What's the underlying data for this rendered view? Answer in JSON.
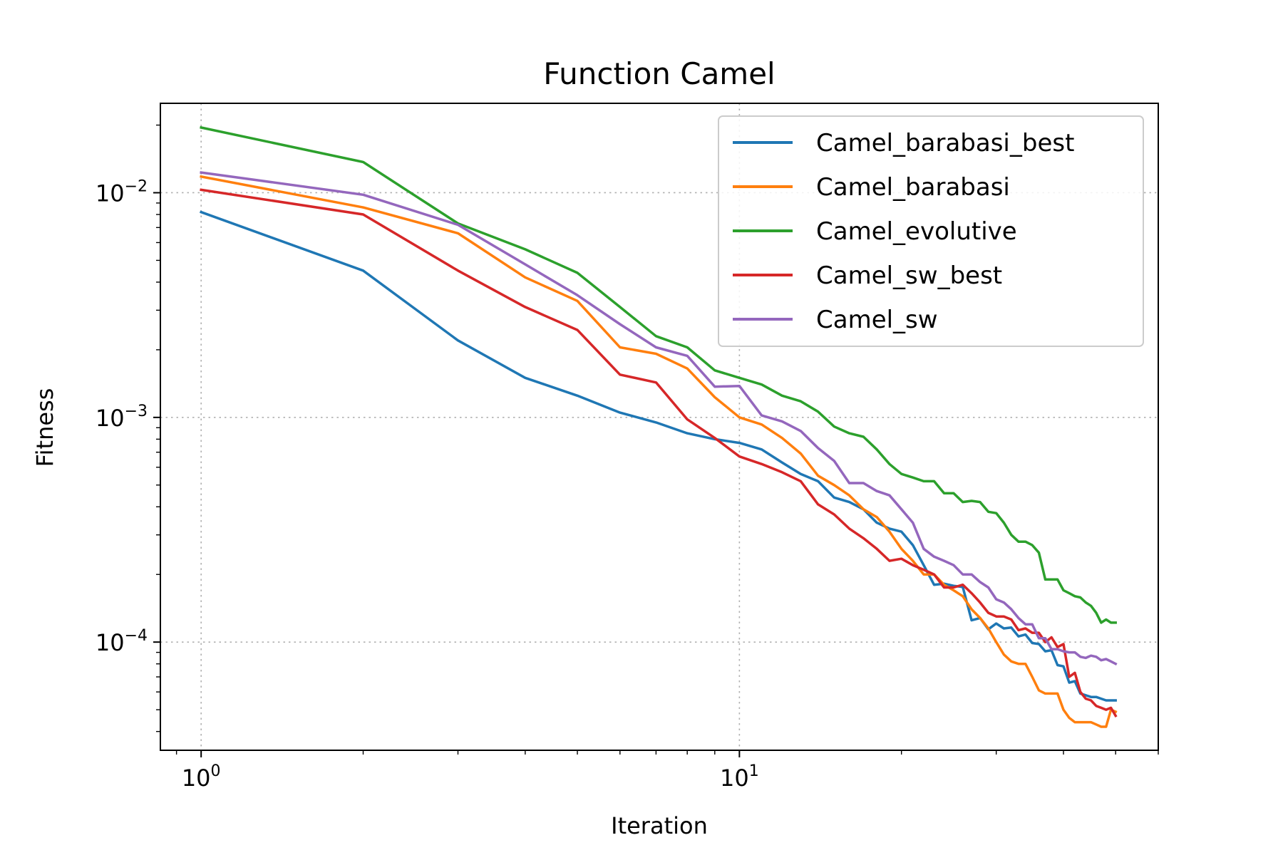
{
  "chart_data": {
    "type": "line",
    "title": "Function Camel",
    "xlabel": "Iteration",
    "ylabel": "Fitness",
    "xscale": "log",
    "yscale": "log",
    "xlim": [
      0.84,
      60
    ],
    "ylim": [
      3.3e-05,
      0.025
    ],
    "grid": true,
    "legend_position": "top-right",
    "x_ticks": [
      {
        "value": 1,
        "base": "10",
        "exp": "0"
      },
      {
        "value": 10,
        "base": "10",
        "exp": "1"
      }
    ],
    "y_ticks": [
      {
        "value": 0.01,
        "base": "10",
        "exp": "−2"
      },
      {
        "value": 0.001,
        "base": "10",
        "exp": "−3"
      },
      {
        "value": 0.0001,
        "base": "10",
        "exp": "−4"
      }
    ],
    "series": [
      {
        "name": "Camel_barabasi_best",
        "color": "#1f77b4",
        "x": [
          1,
          2,
          3,
          4,
          5,
          6,
          7,
          8,
          9,
          10,
          11,
          12,
          13,
          14,
          15,
          16,
          17,
          18,
          19,
          20,
          21,
          22,
          23,
          24,
          25,
          26,
          27,
          28,
          29,
          30,
          31,
          32,
          33,
          34,
          35,
          36,
          37,
          38,
          39,
          40,
          41,
          42,
          43,
          44,
          45,
          46,
          47,
          48,
          49,
          50
        ],
        "y": [
          0.0082,
          0.0045,
          0.0022,
          0.0015,
          0.00125,
          0.00105,
          0.00095,
          0.00085,
          0.0008,
          0.00077,
          0.00072,
          0.00063,
          0.00056,
          0.00052,
          0.00044,
          0.00042,
          0.00039,
          0.00034,
          0.00032,
          0.00031,
          0.00027,
          0.00022,
          0.00018,
          0.000182,
          0.000178,
          0.000176,
          0.000125,
          0.000128,
          0.000114,
          0.000121,
          0.000115,
          0.000116,
          0.000106,
          0.000108,
          9.9e-05,
          9.8e-05,
          9.1e-05,
          9.2e-05,
          7.9e-05,
          7.8e-05,
          6.6e-05,
          6.7e-05,
          5.9e-05,
          5.8e-05,
          5.7e-05,
          5.7e-05,
          5.6e-05,
          5.5e-05,
          5.5e-05,
          5.5e-05
        ]
      },
      {
        "name": "Camel_barabasi",
        "color": "#ff7f0e",
        "x": [
          1,
          2,
          3,
          4,
          5,
          6,
          7,
          8,
          9,
          10,
          11,
          12,
          13,
          14,
          15,
          16,
          17,
          18,
          19,
          20,
          21,
          22,
          23,
          24,
          25,
          26,
          27,
          28,
          29,
          30,
          31,
          32,
          33,
          34,
          35,
          36,
          37,
          38,
          39,
          40,
          41,
          42,
          43,
          44,
          45,
          46,
          47,
          48,
          49,
          50
        ],
        "y": [
          0.0118,
          0.0086,
          0.0066,
          0.0042,
          0.0033,
          0.00205,
          0.00192,
          0.00165,
          0.00123,
          0.001,
          0.00093,
          0.00081,
          0.00069,
          0.00055,
          0.0005,
          0.00045,
          0.00039,
          0.00036,
          0.00031,
          0.00026,
          0.00023,
          0.0002,
          0.0002,
          0.00018,
          0.00017,
          0.00016,
          0.00014,
          0.000128,
          0.000115,
          0.0001,
          8.8e-05,
          8.2e-05,
          8e-05,
          8e-05,
          7e-05,
          6.1e-05,
          5.9e-05,
          5.9e-05,
          5.9e-05,
          5e-05,
          4.6e-05,
          4.4e-05,
          4.4e-05,
          4.4e-05,
          4.4e-05,
          4.3e-05,
          4.2e-05,
          4.2e-05,
          5e-05,
          4.9e-05
        ]
      },
      {
        "name": "Camel_evolutive",
        "color": "#2ca02c",
        "x": [
          1,
          2,
          3,
          4,
          5,
          6,
          7,
          8,
          9,
          10,
          11,
          12,
          13,
          14,
          15,
          16,
          17,
          18,
          19,
          20,
          21,
          22,
          23,
          24,
          25,
          26,
          27,
          28,
          29,
          30,
          31,
          32,
          33,
          34,
          35,
          36,
          37,
          38,
          39,
          40,
          41,
          42,
          43,
          44,
          45,
          46,
          47,
          48,
          49,
          50
        ],
        "y": [
          0.0195,
          0.0137,
          0.0073,
          0.0056,
          0.0044,
          0.0031,
          0.0023,
          0.00205,
          0.00162,
          0.0015,
          0.0014,
          0.00125,
          0.00118,
          0.00106,
          0.00091,
          0.00085,
          0.00082,
          0.00072,
          0.00062,
          0.00056,
          0.00054,
          0.00052,
          0.00052,
          0.00046,
          0.00046,
          0.00042,
          0.000425,
          0.00042,
          0.00038,
          0.000375,
          0.00034,
          0.0003,
          0.00028,
          0.00028,
          0.00027,
          0.00025,
          0.00019,
          0.00019,
          0.00019,
          0.00017,
          0.000165,
          0.00016,
          0.000158,
          0.00015,
          0.000145,
          0.000135,
          0.000122,
          0.000126,
          0.000122,
          0.000122
        ]
      },
      {
        "name": "Camel_sw_best",
        "color": "#d62728",
        "x": [
          1,
          2,
          3,
          4,
          5,
          6,
          7,
          8,
          9,
          10,
          11,
          12,
          13,
          14,
          15,
          16,
          17,
          18,
          19,
          20,
          21,
          22,
          23,
          24,
          25,
          26,
          27,
          28,
          29,
          30,
          31,
          32,
          33,
          34,
          35,
          36,
          37,
          38,
          39,
          40,
          41,
          42,
          43,
          44,
          45,
          46,
          47,
          48,
          49,
          50
        ],
        "y": [
          0.0103,
          0.008,
          0.0045,
          0.0031,
          0.00245,
          0.00155,
          0.00143,
          0.00098,
          0.00081,
          0.00067,
          0.00062,
          0.00057,
          0.00052,
          0.00041,
          0.00037,
          0.00032,
          0.00029,
          0.00026,
          0.00023,
          0.000235,
          0.00022,
          0.00021,
          0.0002,
          0.000175,
          0.000175,
          0.00018,
          0.000165,
          0.00015,
          0.000135,
          0.00013,
          0.00013,
          0.000126,
          0.000113,
          0.000115,
          0.00011,
          0.00011,
          0.0001,
          0.000105,
          9.5e-05,
          9.8e-05,
          7e-05,
          7.3e-05,
          6e-05,
          5.6e-05,
          5.5e-05,
          5.2e-05,
          5.1e-05,
          5e-05,
          5.1e-05,
          4.7e-05
        ]
      },
      {
        "name": "Camel_sw",
        "color": "#9467bd",
        "x": [
          1,
          2,
          3,
          4,
          5,
          6,
          7,
          8,
          9,
          10,
          11,
          12,
          13,
          14,
          15,
          16,
          17,
          18,
          19,
          20,
          21,
          22,
          23,
          24,
          25,
          26,
          27,
          28,
          29,
          30,
          31,
          32,
          33,
          34,
          35,
          36,
          37,
          38,
          39,
          40,
          41,
          42,
          43,
          44,
          45,
          46,
          47,
          48,
          49,
          50
        ],
        "y": [
          0.0123,
          0.0098,
          0.0072,
          0.0048,
          0.0035,
          0.0026,
          0.00205,
          0.00188,
          0.00137,
          0.00138,
          0.00102,
          0.00096,
          0.00087,
          0.00073,
          0.00064,
          0.00051,
          0.00051,
          0.00047,
          0.00045,
          0.00039,
          0.00034,
          0.00026,
          0.00024,
          0.00023,
          0.00022,
          0.0002,
          0.0002,
          0.000185,
          0.000175,
          0.000155,
          0.00015,
          0.00014,
          0.000128,
          0.00012,
          0.00012,
          0.000104,
          0.000104,
          9.3e-05,
          9.3e-05,
          9.1e-05,
          9e-05,
          9e-05,
          8.6e-05,
          8.5e-05,
          8.7e-05,
          8.6e-05,
          8.3e-05,
          8.4e-05,
          8.2e-05,
          8e-05
        ]
      }
    ]
  }
}
